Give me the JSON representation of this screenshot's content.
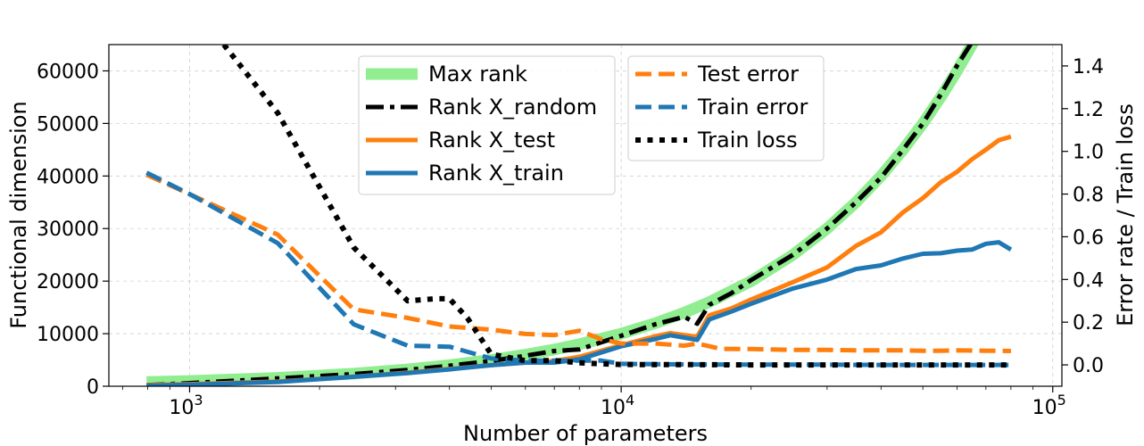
{
  "chart_data": {
    "type": "line",
    "xlabel": "Number of parameters",
    "ylabel_left": "Functional dimension",
    "ylabel_right": "Error rate / Train loss",
    "x_scale": "log",
    "xlim": [
      650,
      105000
    ],
    "ylim_left": [
      0,
      65000
    ],
    "ylim_right": [
      -0.1,
      1.5
    ],
    "grid": true,
    "x_ticks": [
      {
        "value": 1000,
        "base": "10",
        "exp": "3"
      },
      {
        "value": 10000,
        "base": "10",
        "exp": "4"
      },
      {
        "value": 100000,
        "base": "10",
        "exp": "5"
      }
    ],
    "y_ticks_left": [
      {
        "value": 0,
        "label": "0"
      },
      {
        "value": 10000,
        "label": "10000"
      },
      {
        "value": 20000,
        "label": "20000"
      },
      {
        "value": 30000,
        "label": "30000"
      },
      {
        "value": 40000,
        "label": "40000"
      },
      {
        "value": 50000,
        "label": "50000"
      },
      {
        "value": 60000,
        "label": "60000"
      }
    ],
    "y_ticks_right": [
      {
        "value": 0.0,
        "label": "0.0"
      },
      {
        "value": 0.2,
        "label": "0.2"
      },
      {
        "value": 0.4,
        "label": "0.4"
      },
      {
        "value": 0.6,
        "label": "0.6"
      },
      {
        "value": 0.8,
        "label": "0.8"
      },
      {
        "value": 1.0,
        "label": "1.0"
      },
      {
        "value": 1.2,
        "label": "1.2"
      },
      {
        "value": 1.4,
        "label": "1.4"
      }
    ],
    "series": [
      {
        "name": "Max rank",
        "axis": "left",
        "color": "#90ee90",
        "style": "solid",
        "width": 13,
        "x": [
          795,
          1000,
          1600,
          2400,
          3200,
          4000,
          5000,
          6000,
          7000,
          8000,
          10000,
          12000,
          14000,
          16000,
          20000,
          25000,
          30000,
          35000,
          40000,
          45000,
          50000,
          55000,
          60000,
          65000,
          70000,
          80000
        ],
        "y": [
          795,
          1000,
          1600,
          2400,
          3200,
          4000,
          5000,
          6000,
          7000,
          8000,
          10000,
          12000,
          14000,
          16000,
          20000,
          25000,
          30000,
          35000,
          40000,
          45000,
          50000,
          55000,
          60000,
          65000,
          70000,
          80000
        ]
      },
      {
        "name": "Rank X_random",
        "axis": "left",
        "color": "#000000",
        "style": "dashdot",
        "width": 5,
        "x": [
          795,
          1000,
          1600,
          2400,
          3200,
          4000,
          5000,
          6000,
          7000,
          8000,
          10000,
          12000,
          14000,
          15000,
          16000,
          18000,
          20000,
          25000,
          30000,
          35000,
          40000,
          45000,
          50000,
          55000,
          60000,
          65000,
          70000
        ],
        "y": [
          200,
          600,
          1500,
          2300,
          3100,
          3900,
          4800,
          5800,
          6700,
          7000,
          9600,
          11800,
          13200,
          11900,
          15500,
          17700,
          20200,
          25000,
          30000,
          35000,
          39700,
          45000,
          50000,
          55500,
          61000,
          65500,
          70000
        ]
      },
      {
        "name": "Rank X_test",
        "axis": "left",
        "color": "#ff7f0e",
        "style": "solid",
        "width": 5,
        "x": [
          795,
          1000,
          1600,
          2400,
          3200,
          4000,
          5000,
          6000,
          7000,
          8000,
          10000,
          12000,
          13000,
          15000,
          16000,
          18000,
          20000,
          25000,
          30000,
          35000,
          40000,
          45000,
          50000,
          55000,
          60000,
          65000,
          70000,
          75000,
          80000
        ],
        "y": [
          200,
          400,
          900,
          1800,
          2600,
          3300,
          4000,
          4500,
          4800,
          5600,
          7800,
          9500,
          10100,
          9400,
          13500,
          14800,
          16500,
          19800,
          22600,
          26700,
          29300,
          33100,
          35800,
          38800,
          40800,
          43200,
          45000,
          46800,
          47500
        ]
      },
      {
        "name": "Rank X_train",
        "axis": "left",
        "color": "#1f77b4",
        "style": "solid",
        "width": 5,
        "x": [
          795,
          1000,
          1600,
          2400,
          3200,
          4000,
          5000,
          6000,
          7000,
          8000,
          10000,
          12000,
          13000,
          15000,
          16000,
          18000,
          20000,
          25000,
          30000,
          35000,
          40000,
          45000,
          50000,
          55000,
          60000,
          65000,
          70000,
          75000,
          80000
        ],
        "y": [
          100,
          300,
          800,
          1800,
          2500,
          3200,
          4000,
          4500,
          4500,
          5100,
          7600,
          9000,
          9700,
          8800,
          12700,
          14200,
          15700,
          18600,
          20300,
          22300,
          23000,
          24300,
          25200,
          25300,
          25800,
          26000,
          27100,
          27400,
          26000
        ]
      },
      {
        "name": "Test error",
        "axis": "right",
        "color": "#ff7f0e",
        "style": "dashed",
        "width": 5,
        "x": [
          795,
          1000,
          1600,
          2400,
          3200,
          4000,
          5000,
          6000,
          7000,
          8000,
          9000,
          10000,
          12000,
          14000,
          15000,
          17000,
          20000,
          25000,
          30000,
          35000,
          40000,
          45000,
          50000,
          55000,
          60000,
          65000,
          70000,
          75000,
          80000
        ],
        "y": [
          0.89,
          0.8,
          0.61,
          0.26,
          0.22,
          0.18,
          0.165,
          0.145,
          0.14,
          0.16,
          0.12,
          0.1,
          0.1,
          0.09,
          0.1,
          0.075,
          0.074,
          0.07,
          0.07,
          0.068,
          0.068,
          0.068,
          0.066,
          0.066,
          0.068,
          0.067,
          0.066,
          0.066,
          0.065
        ]
      },
      {
        "name": "Train error",
        "axis": "right",
        "color": "#1f77b4",
        "style": "dashed",
        "width": 5,
        "x": [
          795,
          1000,
          1600,
          2400,
          3200,
          4000,
          5000,
          6000,
          7000,
          8000,
          9000,
          10000,
          12000,
          15000,
          20000,
          30000,
          40000,
          50000,
          60000,
          70000,
          80000
        ],
        "y": [
          0.9,
          0.8,
          0.57,
          0.19,
          0.09,
          0.085,
          0.03,
          0.02,
          0.02,
          0.02,
          0.02,
          0.005,
          0.003,
          0.002,
          0.001,
          0.001,
          0.0,
          0.0,
          0.0,
          0.0,
          0.0
        ]
      },
      {
        "name": "Train loss",
        "axis": "right",
        "color": "#000000",
        "style": "dotted",
        "width": 6,
        "x": [
          1200,
          1600,
          2400,
          3200,
          3700,
          4000,
          4400,
          5000,
          6000,
          7000,
          8000,
          9000,
          10000,
          12000,
          15000,
          20000,
          30000,
          40000,
          50000,
          60000,
          70000,
          80000
        ],
        "y": [
          1.5,
          1.18,
          0.55,
          0.3,
          0.31,
          0.31,
          0.22,
          0.05,
          0.02,
          0.02,
          0.01,
          0.005,
          0.002,
          0.001,
          0.001,
          0.0,
          0.0,
          0.0,
          0.0,
          0.0,
          0.0,
          0.0
        ]
      }
    ],
    "legends": [
      {
        "location": "upper-center-left",
        "entries": [
          "Max rank",
          "Rank X_random",
          "Rank X_test",
          "Rank X_train"
        ]
      },
      {
        "location": "upper-center-right",
        "entries": [
          "Test error",
          "Train error",
          "Train loss"
        ]
      }
    ]
  }
}
